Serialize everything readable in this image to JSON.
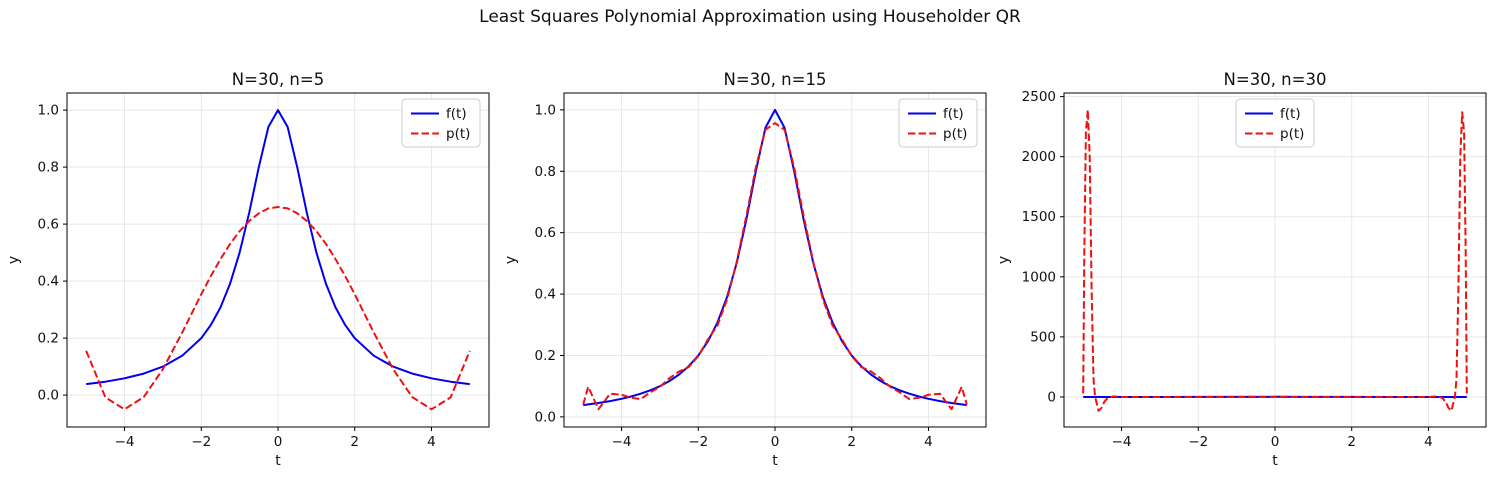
{
  "figure": {
    "suptitle": "Least Squares Polynomial Approximation using Householder QR",
    "background": "#ffffff",
    "colors": {
      "f_line": "#0000ee",
      "p_line": "#ee1111",
      "grid": "#e8e8e8",
      "spine": "#000000",
      "text": "#111111",
      "legend_border": "#cccccc",
      "legend_bg": "#ffffff"
    }
  },
  "chart_data": [
    {
      "type": "line",
      "title": "N=30, n=5",
      "xlabel": "t",
      "ylabel": "y",
      "xlim": [
        -5.5,
        5.5
      ],
      "ylim": [
        -0.112,
        1.06
      ],
      "grid": true,
      "xticks": {
        "values": [
          -4,
          -2,
          0,
          2,
          4
        ],
        "labels": [
          "−4",
          "−2",
          "0",
          "2",
          "4"
        ]
      },
      "yticks": {
        "values": [
          0.0,
          0.2,
          0.4,
          0.6,
          0.8,
          1.0
        ],
        "labels": [
          "0.0",
          "0.2",
          "0.4",
          "0.6",
          "0.8",
          "1.0"
        ]
      },
      "legend": {
        "position": "upper-right",
        "entries": [
          {
            "label": "f(t)",
            "style": "solid",
            "color": "#0000ee"
          },
          {
            "label": "p(t)",
            "style": "dashed",
            "color": "#ee1111"
          }
        ]
      },
      "series": [
        {
          "name": "f(t)",
          "color": "#0000ee",
          "style": "solid",
          "x": [
            -5,
            -4.5,
            -4,
            -3.5,
            -3,
            -2.5,
            -2,
            -1.75,
            -1.5,
            -1.25,
            -1,
            -0.75,
            -0.5,
            -0.25,
            0,
            0.25,
            0.5,
            0.75,
            1,
            1.25,
            1.5,
            1.75,
            2,
            2.5,
            3,
            3.5,
            4,
            4.5,
            5
          ],
          "y": [
            0.0385,
            0.0471,
            0.0588,
            0.0755,
            0.1,
            0.1379,
            0.2,
            0.2462,
            0.3077,
            0.3902,
            0.5,
            0.64,
            0.8,
            0.9412,
            1.0,
            0.9412,
            0.8,
            0.64,
            0.5,
            0.3902,
            0.3077,
            0.2462,
            0.2,
            0.1379,
            0.1,
            0.0755,
            0.0588,
            0.0471,
            0.0385
          ]
        },
        {
          "name": "p(t)",
          "color": "#ee1111",
          "style": "dashed",
          "x": [
            -5,
            -4.5,
            -4,
            -3.5,
            -3,
            -2.5,
            -2,
            -1.75,
            -1.5,
            -1.25,
            -1,
            -0.75,
            -0.5,
            -0.25,
            0,
            0.25,
            0.5,
            0.75,
            1,
            1.25,
            1.5,
            1.75,
            2,
            2.5,
            3,
            3.5,
            4,
            4.5,
            5
          ],
          "y": [
            0.155,
            -0.008,
            -0.05,
            -0.007,
            0.091,
            0.219,
            0.354,
            0.418,
            0.477,
            0.53,
            0.575,
            0.611,
            0.638,
            0.655,
            0.66,
            0.655,
            0.638,
            0.611,
            0.575,
            0.53,
            0.477,
            0.418,
            0.354,
            0.219,
            0.091,
            -0.007,
            -0.05,
            -0.008,
            0.155
          ]
        }
      ]
    },
    {
      "type": "line",
      "title": "N=30, n=15",
      "xlabel": "t",
      "ylabel": "y",
      "xlim": [
        -5.5,
        5.5
      ],
      "ylim": [
        -0.033,
        1.055
      ],
      "grid": true,
      "xticks": {
        "values": [
          -4,
          -2,
          0,
          2,
          4
        ],
        "labels": [
          "−4",
          "−2",
          "0",
          "2",
          "4"
        ]
      },
      "yticks": {
        "values": [
          0.0,
          0.2,
          0.4,
          0.6,
          0.8,
          1.0
        ],
        "labels": [
          "0.0",
          "0.2",
          "0.4",
          "0.6",
          "0.8",
          "1.0"
        ]
      },
      "legend": {
        "position": "upper-right",
        "entries": [
          {
            "label": "f(t)",
            "style": "solid",
            "color": "#0000ee"
          },
          {
            "label": "p(t)",
            "style": "dashed",
            "color": "#ee1111"
          }
        ]
      },
      "series": [
        {
          "name": "f(t)",
          "color": "#0000ee",
          "style": "solid",
          "x": [
            -5,
            -4.87,
            -4.6,
            -4.3,
            -4,
            -3.75,
            -3.5,
            -3.25,
            -3,
            -2.75,
            -2.5,
            -2.25,
            -2,
            -1.75,
            -1.5,
            -1.25,
            -1,
            -0.75,
            -0.5,
            -0.25,
            0,
            0.25,
            0.5,
            0.75,
            1,
            1.25,
            1.5,
            1.75,
            2,
            2.25,
            2.5,
            2.75,
            3,
            3.25,
            3.5,
            3.75,
            4,
            4.3,
            4.6,
            4.87,
            5
          ],
          "y": [
            0.0385,
            0.0405,
            0.0451,
            0.0513,
            0.0588,
            0.0664,
            0.0755,
            0.0865,
            0.1,
            0.1168,
            0.1379,
            0.1649,
            0.2,
            0.2462,
            0.3077,
            0.3902,
            0.5,
            0.64,
            0.8,
            0.9412,
            1.0,
            0.9412,
            0.8,
            0.64,
            0.5,
            0.3902,
            0.3077,
            0.2462,
            0.2,
            0.1649,
            0.1379,
            0.1168,
            0.1,
            0.0865,
            0.0755,
            0.0664,
            0.0588,
            0.0513,
            0.0451,
            0.0405,
            0.0385
          ]
        },
        {
          "name": "p(t)",
          "color": "#ee1111",
          "style": "dashed",
          "x": [
            -5,
            -4.87,
            -4.6,
            -4.3,
            -4,
            -3.75,
            -3.5,
            -3.25,
            -3,
            -2.75,
            -2.5,
            -2.25,
            -2,
            -1.75,
            -1.5,
            -1.25,
            -1,
            -0.75,
            -0.5,
            -0.25,
            0,
            0.25,
            0.5,
            0.75,
            1,
            1.25,
            1.5,
            1.75,
            2,
            2.25,
            2.5,
            2.75,
            3,
            3.25,
            3.5,
            3.75,
            4,
            4.3,
            4.6,
            4.87,
            5
          ],
          "y": [
            0.04,
            0.098,
            0.025,
            0.075,
            0.072,
            0.062,
            0.058,
            0.08,
            0.098,
            0.126,
            0.148,
            0.162,
            0.198,
            0.252,
            0.298,
            0.382,
            0.503,
            0.652,
            0.812,
            0.935,
            0.957,
            0.935,
            0.812,
            0.652,
            0.503,
            0.382,
            0.298,
            0.252,
            0.198,
            0.162,
            0.148,
            0.126,
            0.098,
            0.08,
            0.058,
            0.062,
            0.072,
            0.075,
            0.025,
            0.098,
            0.04
          ]
        }
      ]
    },
    {
      "type": "line",
      "title": "N=30, n=30",
      "xlabel": "t",
      "ylabel": "y",
      "xlim": [
        -5.5,
        5.5
      ],
      "ylim": [
        -250,
        2530
      ],
      "grid": true,
      "xticks": {
        "values": [
          -4,
          -2,
          0,
          2,
          4
        ],
        "labels": [
          "−4",
          "−2",
          "0",
          "2",
          "4"
        ]
      },
      "yticks": {
        "values": [
          0,
          500,
          1000,
          1500,
          2000,
          2500
        ],
        "labels": [
          "0",
          "500",
          "1000",
          "1500",
          "2000",
          "2500"
        ]
      },
      "legend": {
        "position": "upper-center",
        "entries": [
          {
            "label": "f(t)",
            "style": "solid",
            "color": "#0000ee"
          },
          {
            "label": "p(t)",
            "style": "dashed",
            "color": "#ee1111"
          }
        ]
      },
      "series": [
        {
          "name": "f(t)",
          "color": "#0000ee",
          "style": "solid",
          "x": [
            -5,
            -4,
            -3,
            -2,
            -1,
            -0.5,
            0,
            0.5,
            1,
            2,
            3,
            4,
            5
          ],
          "y": [
            0.038,
            0.059,
            0.1,
            0.2,
            0.5,
            0.8,
            1,
            0.8,
            0.5,
            0.2,
            0.1,
            0.059,
            0.038
          ]
        },
        {
          "name": "p(t)",
          "color": "#ee1111",
          "style": "dashed",
          "x": [
            -5,
            -4.97,
            -4.93,
            -4.88,
            -4.83,
            -4.78,
            -4.73,
            -4.69,
            -4.64,
            -4.6,
            -4.52,
            -4.45,
            -4.35,
            -4.2,
            -4,
            -3,
            -2,
            -1,
            0,
            1,
            2,
            3,
            4,
            4.2,
            4.35,
            4.45,
            4.52,
            4.6,
            4.64,
            4.69,
            4.73,
            4.78,
            4.83,
            4.88,
            4.93,
            4.97,
            5
          ],
          "y": [
            30,
            1200,
            2200,
            2390,
            2000,
            900,
            150,
            0,
            -60,
            -115,
            -90,
            -40,
            -5,
            5,
            0,
            0,
            0,
            1,
            1,
            0,
            0,
            0,
            0,
            5,
            -5,
            -40,
            -90,
            -115,
            -60,
            0,
            150,
            900,
            2000,
            2370,
            2200,
            1200,
            30
          ]
        }
      ]
    }
  ]
}
